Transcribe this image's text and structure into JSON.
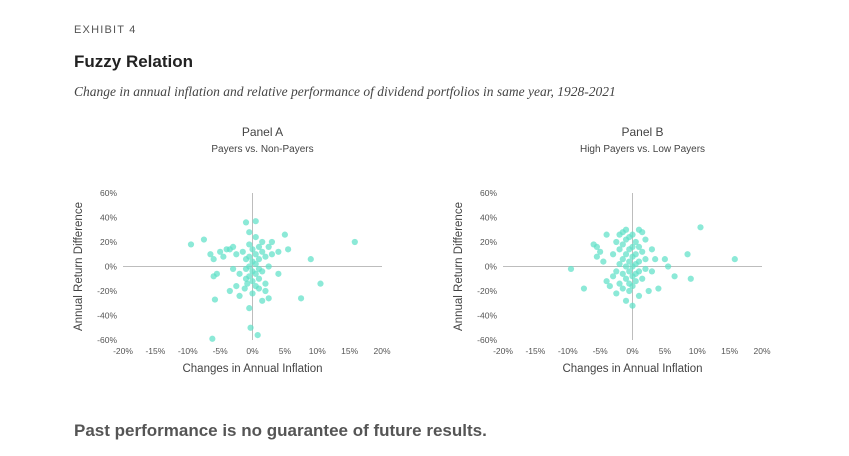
{
  "exhibit_label": "EXHIBIT 4",
  "title": "Fuzzy Relation",
  "subtitle": "Change in annual inflation and relative performance of dividend portfolios in same year, 1928-2021",
  "footer": "Past performance is no guarantee of future results.",
  "colors": {
    "point": "#5fe0c8",
    "axis": "#bdbdbd"
  },
  "chart_data": [
    {
      "type": "scatter",
      "title": "Panel A",
      "subtitle": "Payers vs. Non-Payers",
      "xlabel": "Changes in Annual Inflation",
      "ylabel": "Annual Return Difference",
      "xlim": [
        -20,
        20
      ],
      "ylim": [
        -60,
        60
      ],
      "xticks": [
        "-20%",
        "-15%",
        "-10%",
        "-5%",
        "0%",
        "5%",
        "10%",
        "15%",
        "20%"
      ],
      "yticks": [
        "60%",
        "40%",
        "20%",
        "0%",
        "-20%",
        "-40%",
        "-60%"
      ],
      "grid": false,
      "points": [
        [
          -9.5,
          18
        ],
        [
          -7.5,
          22
        ],
        [
          -6.5,
          10
        ],
        [
          -6,
          6
        ],
        [
          -5.5,
          -6
        ],
        [
          -6,
          -8
        ],
        [
          -5.8,
          -27
        ],
        [
          -6.2,
          -59
        ],
        [
          -5,
          12
        ],
        [
          -4.5,
          8
        ],
        [
          -4,
          14
        ],
        [
          -3.5,
          14
        ],
        [
          -3,
          16
        ],
        [
          -2.5,
          10
        ],
        [
          -3.5,
          -20
        ],
        [
          -3,
          -2
        ],
        [
          -2,
          -6
        ],
        [
          -2.5,
          -16
        ],
        [
          -2,
          -24
        ],
        [
          -1.5,
          12
        ],
        [
          -1,
          6
        ],
        [
          -1,
          -2
        ],
        [
          -1,
          -10
        ],
        [
          -1.2,
          -18
        ],
        [
          -1,
          36
        ],
        [
          -0.5,
          28
        ],
        [
          -0.5,
          18
        ],
        [
          -0.5,
          8
        ],
        [
          -0.5,
          0
        ],
        [
          -0.5,
          -8
        ],
        [
          -0.8,
          -14
        ],
        [
          -0.5,
          -34
        ],
        [
          0,
          14
        ],
        [
          0,
          4
        ],
        [
          0,
          -4
        ],
        [
          0,
          -12
        ],
        [
          0,
          -22
        ],
        [
          -0.3,
          -50
        ],
        [
          0.5,
          37
        ],
        [
          0.5,
          24
        ],
        [
          0.5,
          10
        ],
        [
          0.5,
          2
        ],
        [
          0.5,
          -6
        ],
        [
          0.5,
          -16
        ],
        [
          1,
          16
        ],
        [
          1,
          6
        ],
        [
          1,
          -2
        ],
        [
          1,
          -10
        ],
        [
          1,
          -18
        ],
        [
          0.8,
          -56
        ],
        [
          1.5,
          20
        ],
        [
          1.5,
          12
        ],
        [
          1.5,
          -4
        ],
        [
          1.5,
          -28
        ],
        [
          2,
          8
        ],
        [
          2,
          -14
        ],
        [
          2,
          -20
        ],
        [
          2.5,
          16
        ],
        [
          2.5,
          0
        ],
        [
          2.5,
          -26
        ],
        [
          3,
          20
        ],
        [
          3,
          10
        ],
        [
          4,
          12
        ],
        [
          4,
          -6
        ],
        [
          5,
          26
        ],
        [
          5.5,
          14
        ],
        [
          7.5,
          -26
        ],
        [
          9,
          6
        ],
        [
          10.5,
          -14
        ],
        [
          15.8,
          20
        ]
      ]
    },
    {
      "type": "scatter",
      "title": "Panel B",
      "subtitle": "High Payers vs. Low Payers",
      "xlabel": "Changes in Annual Inflation",
      "ylabel": "Annual Return Difference",
      "xlim": [
        -20,
        20
      ],
      "ylim": [
        -60,
        60
      ],
      "xticks": [
        "-20%",
        "-15%",
        "-10%",
        "-5%",
        "0%",
        "5%",
        "10%",
        "15%",
        "20%"
      ],
      "yticks": [
        "60%",
        "40%",
        "20%",
        "0%",
        "-20%",
        "-40%",
        "-60%"
      ],
      "grid": false,
      "points": [
        [
          -9.5,
          -2
        ],
        [
          -7.5,
          -18
        ],
        [
          -6,
          18
        ],
        [
          -5.5,
          16
        ],
        [
          -5.5,
          8
        ],
        [
          -5,
          12
        ],
        [
          -4.5,
          4
        ],
        [
          -4,
          26
        ],
        [
          -4,
          -12
        ],
        [
          -3.5,
          -16
        ],
        [
          -3,
          10
        ],
        [
          -3,
          -8
        ],
        [
          -2.5,
          20
        ],
        [
          -2.5,
          -4
        ],
        [
          -2.5,
          -22
        ],
        [
          -2,
          26
        ],
        [
          -2,
          14
        ],
        [
          -2,
          2
        ],
        [
          -2,
          -14
        ],
        [
          -1.5,
          28
        ],
        [
          -1.5,
          18
        ],
        [
          -1.5,
          6
        ],
        [
          -1.5,
          -6
        ],
        [
          -1.5,
          -18
        ],
        [
          -1,
          30
        ],
        [
          -1,
          22
        ],
        [
          -1,
          10
        ],
        [
          -1,
          0
        ],
        [
          -1,
          -10
        ],
        [
          -1,
          -28
        ],
        [
          -0.5,
          24
        ],
        [
          -0.5,
          14
        ],
        [
          -0.5,
          4
        ],
        [
          -0.5,
          -4
        ],
        [
          -0.5,
          -14
        ],
        [
          -0.5,
          -20
        ],
        [
          0,
          26
        ],
        [
          0,
          16
        ],
        [
          0,
          8
        ],
        [
          0,
          0
        ],
        [
          0,
          -8
        ],
        [
          0,
          -16
        ],
        [
          0,
          -32
        ],
        [
          0.5,
          20
        ],
        [
          0.5,
          10
        ],
        [
          0.5,
          2
        ],
        [
          0.5,
          -6
        ],
        [
          0.5,
          -12
        ],
        [
          1,
          30
        ],
        [
          1,
          16
        ],
        [
          1,
          4
        ],
        [
          1,
          -4
        ],
        [
          1,
          -24
        ],
        [
          1.5,
          28
        ],
        [
          1.5,
          12
        ],
        [
          1.5,
          -10
        ],
        [
          2,
          22
        ],
        [
          2,
          6
        ],
        [
          2,
          -2
        ],
        [
          2.5,
          -20
        ],
        [
          3,
          14
        ],
        [
          3,
          -4
        ],
        [
          3.5,
          6
        ],
        [
          4,
          -18
        ],
        [
          5,
          6
        ],
        [
          5.5,
          0
        ],
        [
          6.5,
          -8
        ],
        [
          8.5,
          10
        ],
        [
          9,
          -10
        ],
        [
          10.5,
          32
        ],
        [
          15.8,
          6
        ]
      ]
    }
  ]
}
